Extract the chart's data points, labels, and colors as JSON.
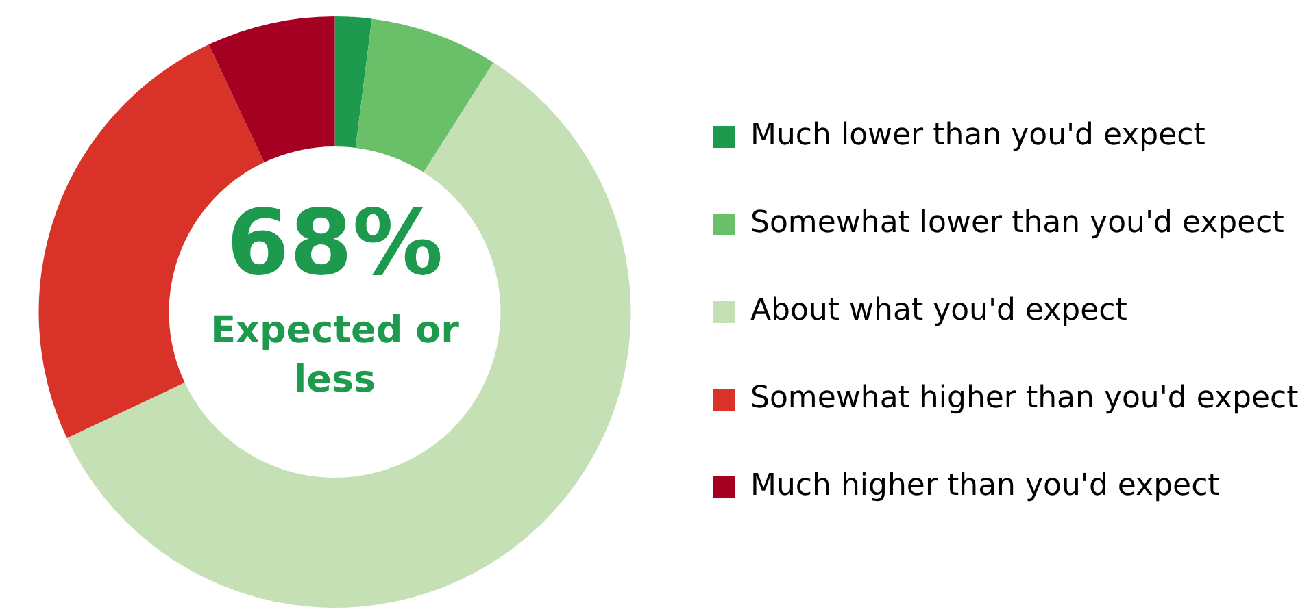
{
  "chart_data": {
    "type": "donut",
    "categories": [
      "Much lower than you'd expect",
      "Somewhat lower than you'd expect",
      "About what you'd expect",
      "Somewhat higher than you'd expect",
      "Much higher than you'd expect"
    ],
    "values": [
      2,
      7,
      59,
      25,
      7
    ],
    "colors": [
      "#1e9a4f",
      "#6abf69",
      "#c5e0b4",
      "#d93329",
      "#a50021"
    ],
    "annotations": [
      "68%",
      "Expected or less"
    ],
    "legend": "right"
  }
}
